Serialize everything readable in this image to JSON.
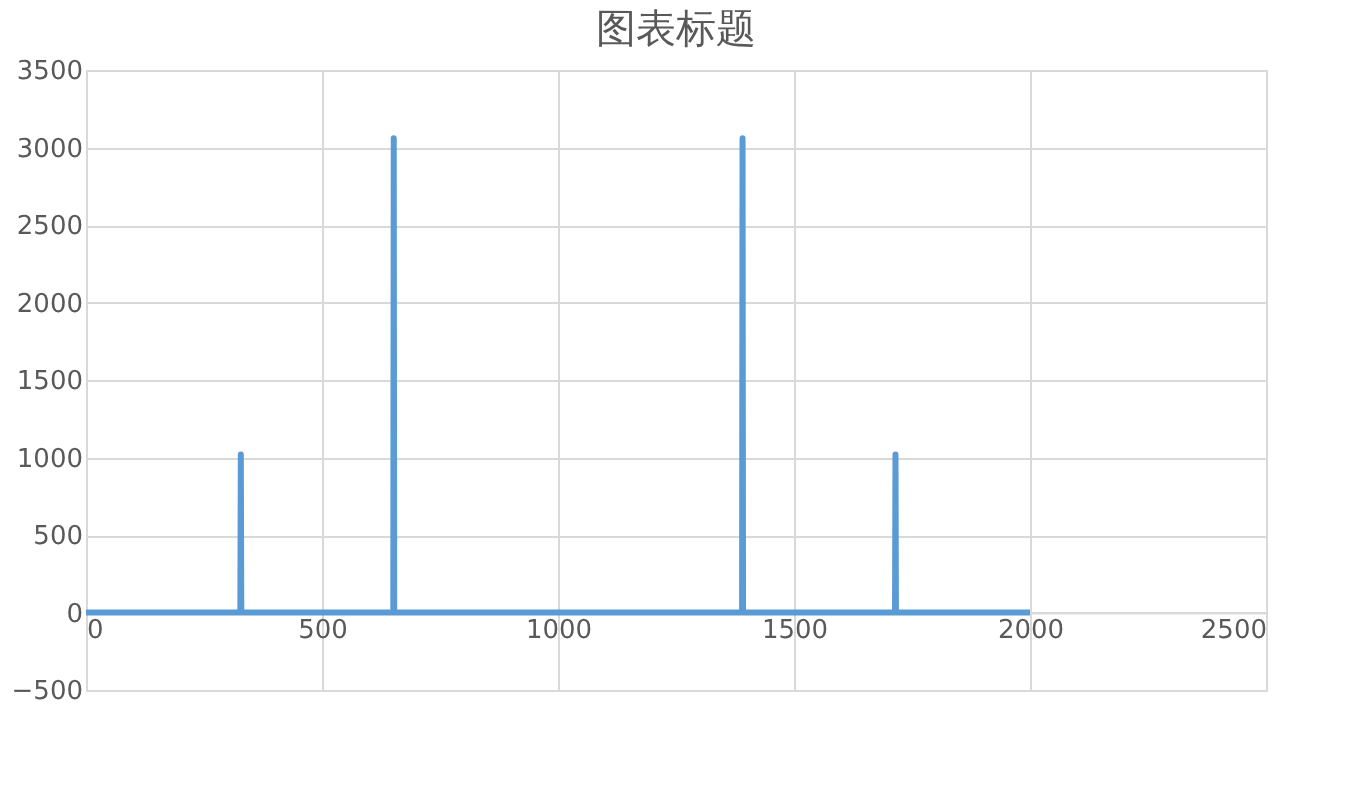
{
  "chart_data": {
    "type": "line",
    "title": "图表标题",
    "x": [
      0,
      327,
      328,
      329,
      651,
      652,
      653,
      1390,
      1391,
      1392,
      1714,
      1715,
      1716,
      2000
    ],
    "series": [
      {
        "color": "#5b9bd5",
        "values": [
          0,
          0,
          1020,
          0,
          0,
          3060,
          0,
          0,
          3060,
          0,
          0,
          1020,
          0,
          0
        ]
      }
    ],
    "xlim": [
      0,
      2500
    ],
    "xticks": [
      0,
      500,
      1000,
      1500,
      2000,
      2500
    ],
    "ylim": [
      -500,
      3500
    ],
    "yticks": [
      -500,
      0,
      500,
      1000,
      1500,
      2000,
      2500,
      3000,
      3500
    ],
    "grid": true,
    "legend": false,
    "marker": "none",
    "line_style": "solid"
  }
}
